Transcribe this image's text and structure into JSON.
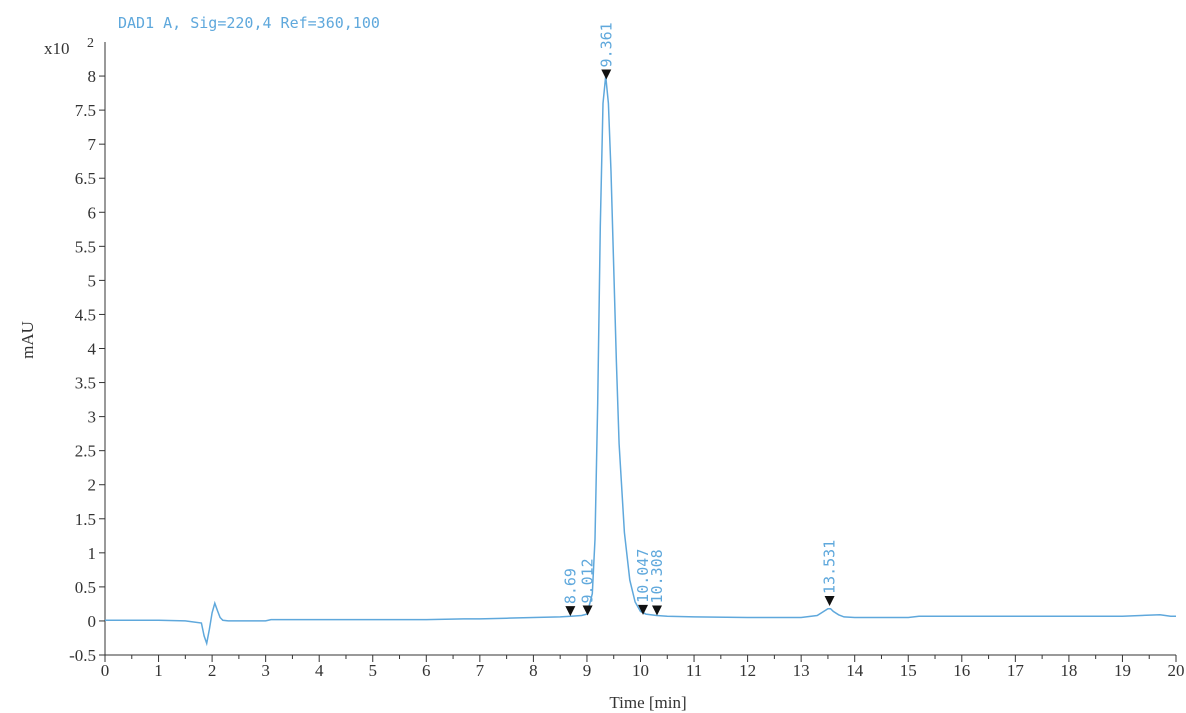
{
  "chart_data": {
    "type": "line",
    "title": "DAD1 A, Sig=220,4 Ref=360,100",
    "xlabel": "Time [min]",
    "ylabel": "mAU",
    "y_multiplier": "x10",
    "y_multiplier_exp": "2",
    "xlim": [
      0,
      20
    ],
    "ylim": [
      -0.5,
      8.5
    ],
    "x_ticks": [
      "0",
      "1",
      "2",
      "3",
      "4",
      "5",
      "6",
      "7",
      "8",
      "9",
      "10",
      "11",
      "12",
      "13",
      "14",
      "15",
      "16",
      "17",
      "18",
      "19",
      "20"
    ],
    "y_ticks": [
      "-0.5",
      "0",
      "0.5",
      "1",
      "1.5",
      "2",
      "2.5",
      "3",
      "3.5",
      "4",
      "4.5",
      "5",
      "5.5",
      "6",
      "6.5",
      "7",
      "7.5",
      "8"
    ],
    "grid": false,
    "series": [
      {
        "x": [
          0,
          0.5,
          1,
          1.5,
          1.8,
          1.85,
          1.9,
          1.95,
          2,
          2.05,
          2.1,
          2.15,
          2.2,
          2.3,
          2.5,
          3,
          3.1,
          4,
          5,
          6,
          6.7,
          7,
          7.5,
          8,
          8.5,
          8.7,
          8.9,
          9.0,
          9.1,
          9.15,
          9.2,
          9.25,
          9.3,
          9.35,
          9.4,
          9.45,
          9.5,
          9.55,
          9.6,
          9.7,
          9.8,
          9.9,
          10.0,
          10.1,
          10.3,
          10.5,
          11,
          12,
          13,
          13.3,
          13.4,
          13.5,
          13.55,
          13.6,
          13.7,
          13.8,
          14,
          14.5,
          15,
          15.2,
          16,
          17,
          18,
          19,
          19.7,
          19.8,
          19.9,
          20
        ],
        "y": [
          0.01,
          0.01,
          0.01,
          0.0,
          -0.03,
          -0.22,
          -0.33,
          -0.12,
          0.12,
          0.26,
          0.15,
          0.05,
          0.01,
          0.0,
          0.0,
          0.0,
          0.02,
          0.02,
          0.02,
          0.02,
          0.03,
          0.03,
          0.04,
          0.05,
          0.06,
          0.07,
          0.08,
          0.1,
          0.4,
          1.2,
          3.2,
          5.8,
          7.6,
          8.0,
          7.6,
          6.6,
          5.2,
          3.8,
          2.6,
          1.3,
          0.6,
          0.28,
          0.14,
          0.1,
          0.08,
          0.07,
          0.06,
          0.05,
          0.05,
          0.08,
          0.13,
          0.18,
          0.18,
          0.14,
          0.09,
          0.06,
          0.05,
          0.05,
          0.05,
          0.07,
          0.07,
          0.07,
          0.07,
          0.07,
          0.09,
          0.08,
          0.07,
          0.07
        ]
      }
    ],
    "peaks": [
      {
        "label": "8.69",
        "x": 8.69,
        "y": 0.07
      },
      {
        "label": "9.012",
        "x": 9.012,
        "y": 0.08
      },
      {
        "label": "9.361",
        "x": 9.361,
        "y": 7.95
      },
      {
        "label": "10.047",
        "x": 10.047,
        "y": 0.09
      },
      {
        "label": "10.308",
        "x": 10.308,
        "y": 0.08
      },
      {
        "label": "13.531",
        "x": 13.531,
        "y": 0.22
      }
    ],
    "colors": {
      "signal": "#5fa8dc",
      "label": "#5fa8dc",
      "axis": "#333333",
      "marker": "#111111"
    }
  }
}
